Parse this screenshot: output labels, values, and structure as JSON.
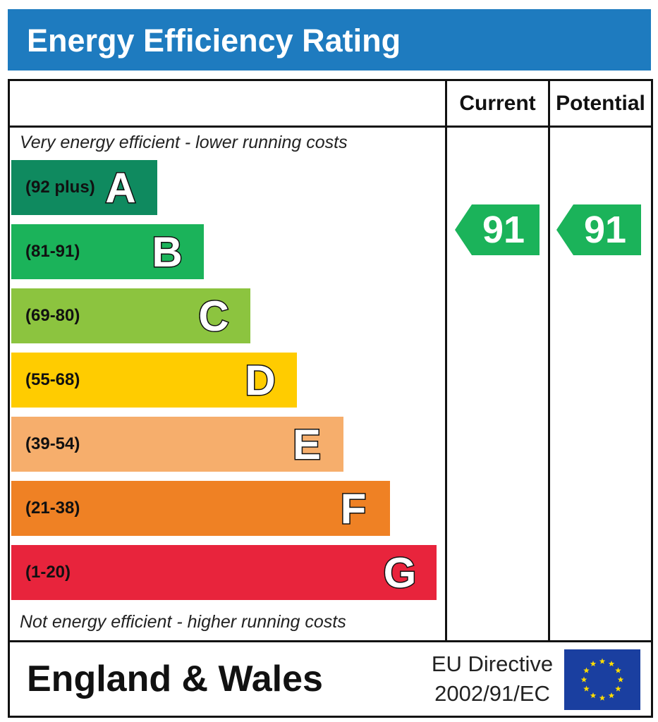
{
  "header": {
    "title": "Energy Efficiency Rating"
  },
  "columns": {
    "current": "Current",
    "potential": "Potential"
  },
  "notes": {
    "top": "Very energy efficient - lower running costs",
    "bottom": "Not energy efficient - higher running costs"
  },
  "footer": {
    "region": "England & Wales",
    "directive_line1": "EU Directive",
    "directive_line2": "2002/91/EC",
    "flag_icon": "eu-flag-icon"
  },
  "chart_data": {
    "type": "bar",
    "categories": [
      "A",
      "B",
      "C",
      "D",
      "E",
      "F",
      "G"
    ],
    "ranges": [
      "(92 plus)",
      "(81-91)",
      "(69-80)",
      "(55-68)",
      "(39-54)",
      "(21-38)",
      "(1-20)"
    ],
    "colors": [
      "#0f8a5f",
      "#1bb35a",
      "#8cc43f",
      "#ffcc00",
      "#f6ae6c",
      "#ef8124",
      "#e8243c"
    ],
    "current": {
      "value": 91,
      "band": "B",
      "color": "#1bb35a"
    },
    "potential": {
      "value": 91,
      "band": "B",
      "color": "#1bb35a"
    }
  }
}
